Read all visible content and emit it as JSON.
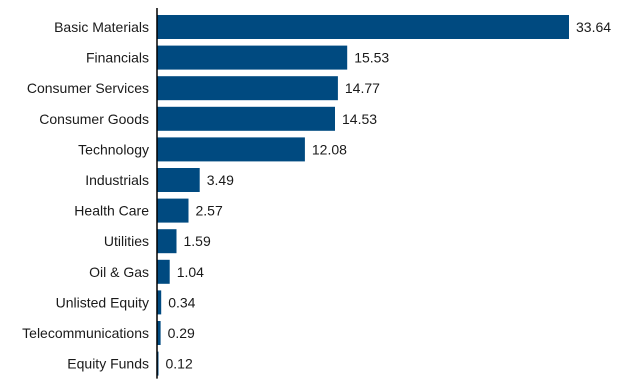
{
  "chart_data": {
    "type": "bar",
    "orientation": "horizontal",
    "categories": [
      "Basic Materials",
      "Financials",
      "Consumer Services",
      "Consumer Goods",
      "Technology",
      "Industrials",
      "Health Care",
      "Utilities",
      "Oil & Gas",
      "Unlisted Equity",
      "Telecommunications",
      "Equity Funds"
    ],
    "values": [
      33.64,
      15.53,
      14.77,
      14.53,
      12.08,
      3.49,
      2.57,
      1.59,
      1.04,
      0.34,
      0.29,
      0.12
    ],
    "value_labels": [
      "33.64",
      "15.53",
      "14.77",
      "14.53",
      "12.08",
      "3.49",
      "2.57",
      "1.59",
      "1.04",
      "0.34",
      "0.29",
      "0.12"
    ],
    "title": "",
    "xlabel": "",
    "ylabel": "",
    "xlim": [
      0,
      33.64
    ],
    "grid": false,
    "legend": "none",
    "bar_color": "#004a80",
    "axis_color": "#000000",
    "text_color": "#1a1a1a"
  }
}
